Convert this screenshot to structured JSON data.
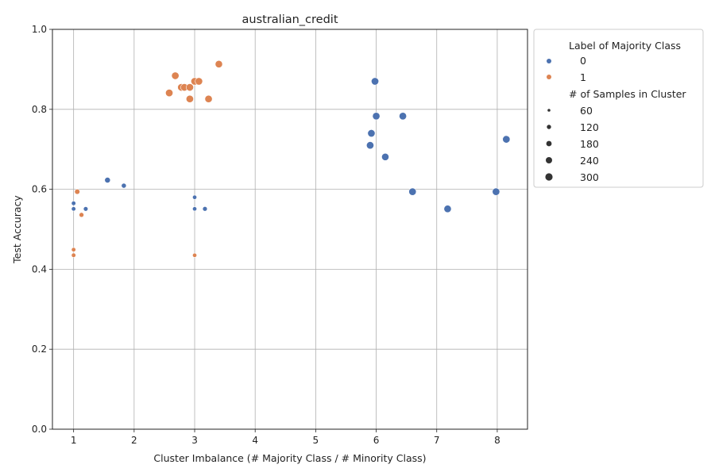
{
  "chart_data": {
    "type": "scatter",
    "title": "australian_credit",
    "xlabel": "Cluster Imbalance (# Majority Class / # Minority Class)",
    "ylabel": "Test Accuracy",
    "xlim": [
      0.65,
      8.5
    ],
    "ylim": [
      0.0,
      1.0
    ],
    "xticks": [
      1,
      2,
      3,
      4,
      5,
      6,
      7,
      8
    ],
    "yticks": [
      0.0,
      0.2,
      0.4,
      0.6,
      0.8,
      1.0
    ],
    "grid": true,
    "legend_placement": "outside-upper-right",
    "colors": {
      "0": "#4c72b0",
      "1": "#dd8452"
    },
    "legend": {
      "hue_title": "Label of Majority Class",
      "hue_entries": [
        "0",
        "1"
      ],
      "size_title": "# of Samples in Cluster",
      "size_entries": [
        "60",
        "120",
        "180",
        "240",
        "300"
      ]
    },
    "series": [
      {
        "name": "0",
        "points": [
          {
            "x": 5.98,
            "y": 0.87,
            "n": 300
          },
          {
            "x": 6.0,
            "y": 0.783,
            "n": 300
          },
          {
            "x": 6.44,
            "y": 0.783,
            "n": 300
          },
          {
            "x": 5.92,
            "y": 0.74,
            "n": 300
          },
          {
            "x": 5.9,
            "y": 0.71,
            "n": 300
          },
          {
            "x": 8.15,
            "y": 0.725,
            "n": 300
          },
          {
            "x": 6.15,
            "y": 0.681,
            "n": 290
          },
          {
            "x": 6.6,
            "y": 0.594,
            "n": 300
          },
          {
            "x": 7.98,
            "y": 0.594,
            "n": 300
          },
          {
            "x": 7.18,
            "y": 0.551,
            "n": 300
          },
          {
            "x": 1.56,
            "y": 0.623,
            "n": 140
          },
          {
            "x": 1.83,
            "y": 0.609,
            "n": 90
          },
          {
            "x": 1.0,
            "y": 0.565,
            "n": 60
          },
          {
            "x": 1.0,
            "y": 0.551,
            "n": 60
          },
          {
            "x": 1.2,
            "y": 0.551,
            "n": 70
          },
          {
            "x": 3.0,
            "y": 0.58,
            "n": 55
          },
          {
            "x": 3.0,
            "y": 0.551,
            "n": 55
          },
          {
            "x": 3.17,
            "y": 0.551,
            "n": 75
          }
        ]
      },
      {
        "name": "1",
        "points": [
          {
            "x": 3.4,
            "y": 0.913,
            "n": 290
          },
          {
            "x": 2.68,
            "y": 0.884,
            "n": 300
          },
          {
            "x": 3.0,
            "y": 0.87,
            "n": 300
          },
          {
            "x": 3.07,
            "y": 0.87,
            "n": 300
          },
          {
            "x": 2.78,
            "y": 0.855,
            "n": 300
          },
          {
            "x": 2.83,
            "y": 0.855,
            "n": 300
          },
          {
            "x": 2.92,
            "y": 0.855,
            "n": 300
          },
          {
            "x": 2.58,
            "y": 0.841,
            "n": 300
          },
          {
            "x": 2.92,
            "y": 0.826,
            "n": 300
          },
          {
            "x": 3.23,
            "y": 0.826,
            "n": 300
          },
          {
            "x": 1.06,
            "y": 0.594,
            "n": 110
          },
          {
            "x": 1.13,
            "y": 0.536,
            "n": 80
          },
          {
            "x": 1.0,
            "y": 0.449,
            "n": 60
          },
          {
            "x": 1.0,
            "y": 0.435,
            "n": 60
          },
          {
            "x": 3.0,
            "y": 0.435,
            "n": 55
          }
        ]
      }
    ]
  }
}
